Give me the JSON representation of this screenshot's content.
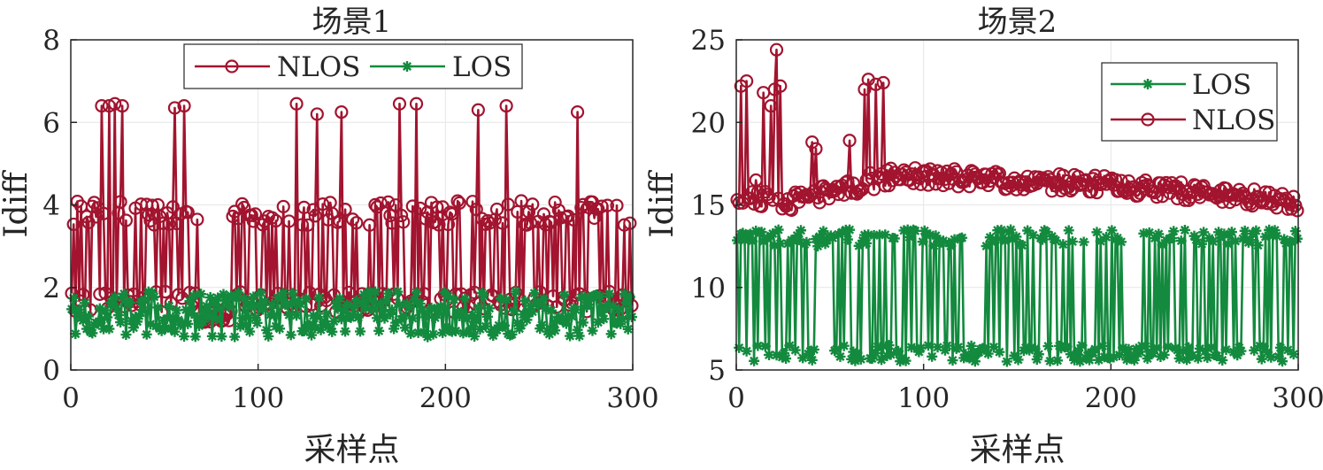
{
  "chart_data": [
    {
      "type": "line",
      "title": "场景1",
      "xlabel": "采样点",
      "ylabel": "Idiff",
      "xlim": [
        0,
        300
      ],
      "ylim": [
        0,
        8
      ],
      "xticks": [
        0,
        100,
        200,
        300
      ],
      "yticks": [
        0,
        2,
        4,
        6,
        8
      ],
      "grid": true,
      "legend": {
        "position": "top",
        "orientation": "horizontal",
        "entries": [
          "NLOS",
          "LOS"
        ]
      },
      "series": [
        {
          "name": "NLOS",
          "color": "#a2142f",
          "marker": "circle",
          "baseline": [
            1.4,
            1.9,
            3.5,
            4.1
          ],
          "peaks": [
            [
              16,
              6.4
            ],
            [
              20,
              6.4
            ],
            [
              23,
              6.45
            ],
            [
              27,
              6.4
            ],
            [
              55,
              6.35
            ],
            [
              60,
              6.4
            ],
            [
              120,
              6.45
            ],
            [
              131,
              6.2
            ],
            [
              144,
              6.25
            ],
            [
              175,
              6.45
            ],
            [
              184,
              6.45
            ],
            [
              217,
              6.3
            ],
            [
              232,
              6.4
            ],
            [
              270,
              6.25
            ]
          ],
          "dip": {
            "x_range": [
              68,
              85
            ],
            "value": 1.3
          },
          "n_points": 300
        },
        {
          "name": "LOS",
          "color": "#138a3e",
          "marker": "asterisk",
          "range": [
            0.8,
            1.9
          ],
          "n_points": 300
        }
      ]
    },
    {
      "type": "line",
      "title": "场景2",
      "xlabel": "采样点",
      "ylabel": "Idiff",
      "xlim": [
        0,
        300
      ],
      "ylim": [
        5,
        25
      ],
      "xticks": [
        0,
        100,
        200,
        300
      ],
      "yticks": [
        5,
        10,
        15,
        20,
        25
      ],
      "grid": true,
      "legend": {
        "position": "top-right",
        "orientation": "vertical",
        "entries": [
          "LOS",
          "NLOS"
        ]
      },
      "series": [
        {
          "name": "LOS",
          "color": "#138a3e",
          "marker": "asterisk",
          "levels": [
            6.0,
            13.0
          ],
          "n_points": 300
        },
        {
          "name": "NLOS",
          "color": "#a2142f",
          "marker": "circle",
          "early_spikes": [
            [
              2,
              22.2
            ],
            [
              5,
              22.5
            ],
            [
              10,
              16.5
            ],
            [
              14,
              21.8
            ],
            [
              18,
              21.0
            ],
            [
              20,
              22.0
            ],
            [
              21,
              24.4
            ],
            [
              23,
              22.2
            ],
            [
              40,
              18.8
            ],
            [
              42,
              18.4
            ],
            [
              60,
              18.9
            ],
            [
              68,
              22.0
            ],
            [
              70,
              22.6
            ],
            [
              74,
              22.3
            ],
            [
              78,
              22.4
            ]
          ],
          "trend": [
            [
              0,
              15.6
            ],
            [
              30,
              15.2
            ],
            [
              85,
              16.8
            ],
            [
              200,
              16.2
            ],
            [
              300,
              15.2
            ]
          ],
          "n_points": 300
        }
      ]
    }
  ]
}
